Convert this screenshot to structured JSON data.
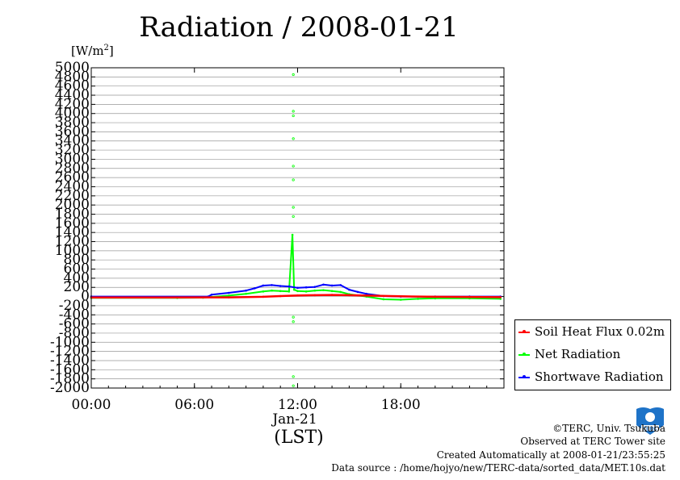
{
  "title": "Radiation / 2008-01-21",
  "unit_label": "[W/m",
  "unit_sup": "2",
  "unit_close": "]",
  "x_date_label": "Jan-21",
  "x_axis_label": "(LST)",
  "footer": {
    "copyright": "©TERC, Univ. Tsukuba",
    "observed": "Observed at TERC Tower site",
    "created": "Created Automatically at 2008-01-21/23:55:25",
    "source": "Data source : /home/hojyo/new/TERC-data/sorted_data/MET.10s.dat"
  },
  "logo_text": "TERC",
  "colors": {
    "soil": "#ff0000",
    "net": "#00ff00",
    "shortwave": "#0000ff",
    "grid": "#999999"
  },
  "chart_data": {
    "type": "line",
    "title": "Radiation / 2008-01-21",
    "ylabel": "[W/m2]",
    "xlabel": "(LST)",
    "ylim": [
      -2000,
      5000
    ],
    "xlim_hours": [
      0,
      24
    ],
    "y_ticks": [
      5000,
      4800,
      4600,
      4400,
      4200,
      4000,
      3800,
      3600,
      3400,
      3200,
      3000,
      2800,
      2600,
      2400,
      2200,
      2000,
      1800,
      1600,
      1400,
      1200,
      1000,
      800,
      600,
      400,
      200,
      0,
      -200,
      -400,
      -600,
      -800,
      -1000,
      -1200,
      -1400,
      -1600,
      -1800,
      -2000
    ],
    "x_ticks": [
      {
        "h": 0,
        "label": "00:00"
      },
      {
        "h": 6,
        "label": "06:00"
      },
      {
        "h": 12,
        "label": "12:00"
      },
      {
        "h": 18,
        "label": "18:00"
      }
    ],
    "grid": true,
    "legend_position": "right",
    "series": [
      {
        "name": "Soil Heat Flux 0.02m",
        "color": "#ff0000",
        "x": [
          0,
          4,
          8,
          10,
          11,
          12,
          13,
          14,
          15,
          16,
          18,
          20,
          22,
          23.8
        ],
        "values": [
          -20,
          -20,
          -18,
          -5,
          10,
          25,
          30,
          35,
          30,
          20,
          5,
          -5,
          -10,
          -15
        ]
      },
      {
        "name": "Net Radiation",
        "color": "#00ff00",
        "x": [
          0,
          5,
          6.5,
          7,
          8,
          9,
          10,
          10.5,
          11,
          11.5,
          11.7,
          11.8,
          12,
          12.5,
          13,
          13.5,
          14,
          14.5,
          15,
          16,
          17,
          18,
          19,
          20,
          22,
          23.8
        ],
        "values": [
          -30,
          -30,
          -25,
          -10,
          20,
          60,
          110,
          130,
          120,
          110,
          1350,
          150,
          120,
          110,
          130,
          140,
          120,
          100,
          50,
          0,
          -60,
          -70,
          -50,
          -40,
          -40,
          -50
        ]
      },
      {
        "name": "Shortwave Radiation",
        "color": "#0000ff",
        "x": [
          0,
          6.8,
          7,
          8,
          9,
          9.5,
          10,
          10.5,
          11,
          11.5,
          12,
          12.5,
          13,
          13.5,
          14,
          14.5,
          15,
          15.5,
          16,
          17,
          18,
          20,
          22,
          23.8
        ],
        "values": [
          0,
          0,
          40,
          80,
          130,
          180,
          240,
          250,
          230,
          220,
          190,
          200,
          210,
          260,
          240,
          250,
          150,
          100,
          60,
          10,
          0,
          0,
          0,
          0
        ]
      }
    ],
    "net_spikes": {
      "x": 11.75,
      "values": [
        4850,
        4050,
        3950,
        3450,
        2850,
        2550,
        1950,
        1750,
        -450,
        -550,
        -1750,
        -1950
      ]
    }
  }
}
